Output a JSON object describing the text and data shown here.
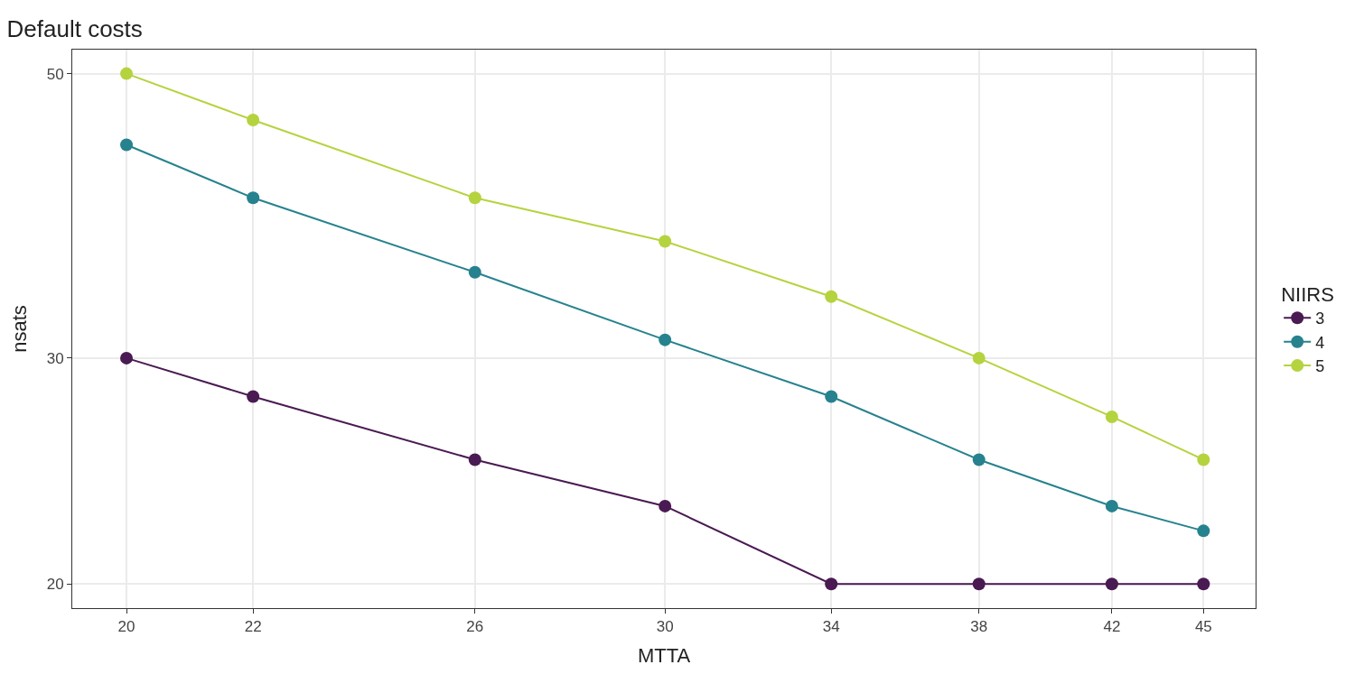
{
  "chart_data": {
    "type": "line",
    "title": "Default costs",
    "xlabel": "MTTA",
    "ylabel": "nsats",
    "legend_title": "NIIRS",
    "x": [
      20,
      22,
      26,
      30,
      34,
      38,
      42,
      45
    ],
    "series": [
      {
        "name": "3",
        "color": "#4a1a52",
        "values": [
          30,
          28,
          25,
          23,
          20,
          20,
          20,
          20
        ]
      },
      {
        "name": "4",
        "color": "#26828e",
        "values": [
          44,
          40,
          35,
          31,
          28,
          25,
          23,
          22
        ]
      },
      {
        "name": "5",
        "color": "#b5d33e",
        "values": [
          50,
          46,
          40,
          37,
          33.5,
          30,
          27,
          25
        ]
      }
    ],
    "log": "xy",
    "xlim": [
      19.2,
      46.8
    ],
    "ylim": [
      19.15,
      52.2
    ],
    "xticks": [
      20,
      22,
      26,
      30,
      34,
      38,
      42,
      45
    ],
    "yticks": [
      20,
      30,
      50
    ],
    "grid": true,
    "legend": "right",
    "marker": "circle",
    "line_style": "solid"
  }
}
